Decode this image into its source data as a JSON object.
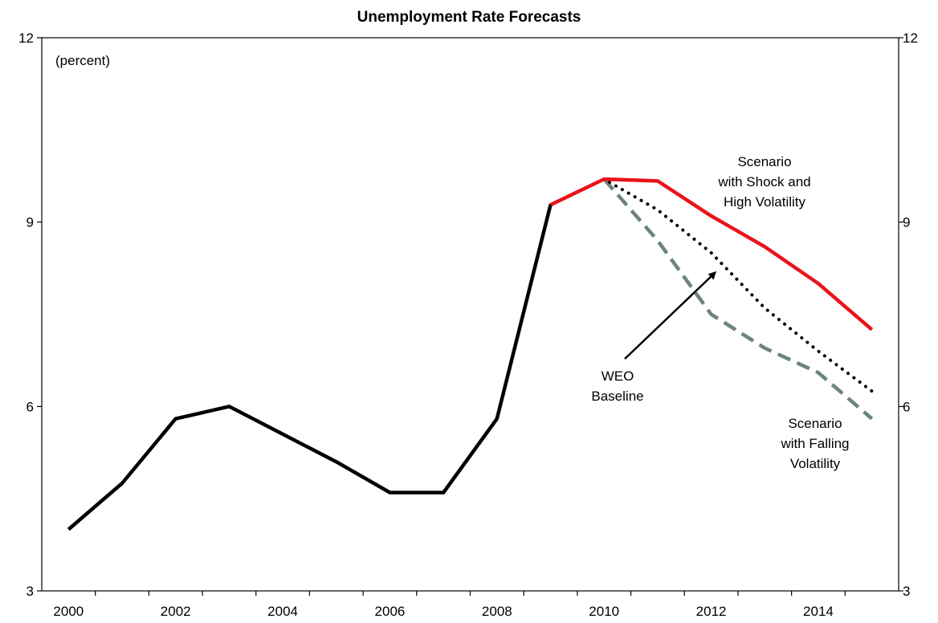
{
  "chart_data": {
    "type": "line",
    "title": "Unemployment Rate Forecasts",
    "unit_note": "(percent)",
    "xlabel": "",
    "ylabel": "",
    "xlim": [
      1999.5,
      2015.5
    ],
    "ylim": [
      3,
      12
    ],
    "y_ticks": [
      3,
      6,
      9,
      12
    ],
    "y_tick_labels": [
      "3",
      "6",
      "9",
      "12"
    ],
    "x_tick_labels": [
      "2000",
      "2002",
      "2004",
      "2006",
      "2008",
      "2010",
      "2012",
      "2014"
    ],
    "x_tick_values": [
      2000,
      2002,
      2004,
      2006,
      2008,
      2010,
      2012,
      2014
    ],
    "grid": false,
    "series": [
      {
        "key": "historical",
        "x": [
          2000,
          2001,
          2002,
          2003,
          2004,
          2005,
          2006,
          2007,
          2008,
          2009
        ],
        "values": [
          4.0,
          4.75,
          5.8,
          6.0,
          5.55,
          5.1,
          4.6,
          4.6,
          5.8,
          9.28
        ],
        "color": "#000000",
        "style": "solid"
      },
      {
        "key": "shock_high_volatility",
        "x": [
          2009,
          2010,
          2011,
          2012,
          2013,
          2014,
          2015
        ],
        "values": [
          9.28,
          9.7,
          9.67,
          9.1,
          8.6,
          8.0,
          7.25
        ],
        "color": "#e8141a",
        "style": "solid"
      },
      {
        "key": "weo_baseline",
        "x": [
          2009,
          2010,
          2011,
          2012,
          2013,
          2014,
          2015
        ],
        "values": [
          9.28,
          9.7,
          9.2,
          8.5,
          7.6,
          6.9,
          6.25
        ],
        "color": "#000000",
        "style": "dotted"
      },
      {
        "key": "falling_volatility",
        "x": [
          2010,
          2011,
          2012,
          2013,
          2014,
          2015
        ],
        "values": [
          9.7,
          8.7,
          7.5,
          6.95,
          6.55,
          5.8
        ],
        "color": "#6b8577",
        "style": "dashed"
      }
    ],
    "annotations": [
      {
        "key": "shock",
        "lines": [
          "Scenario",
          "with Shock and",
          "High Volatility"
        ]
      },
      {
        "key": "baseline",
        "lines": [
          "WEO",
          "Baseline"
        ],
        "arrow": true
      },
      {
        "key": "falling",
        "lines": [
          "Scenario",
          "with Falling",
          "Volatility"
        ]
      }
    ]
  }
}
